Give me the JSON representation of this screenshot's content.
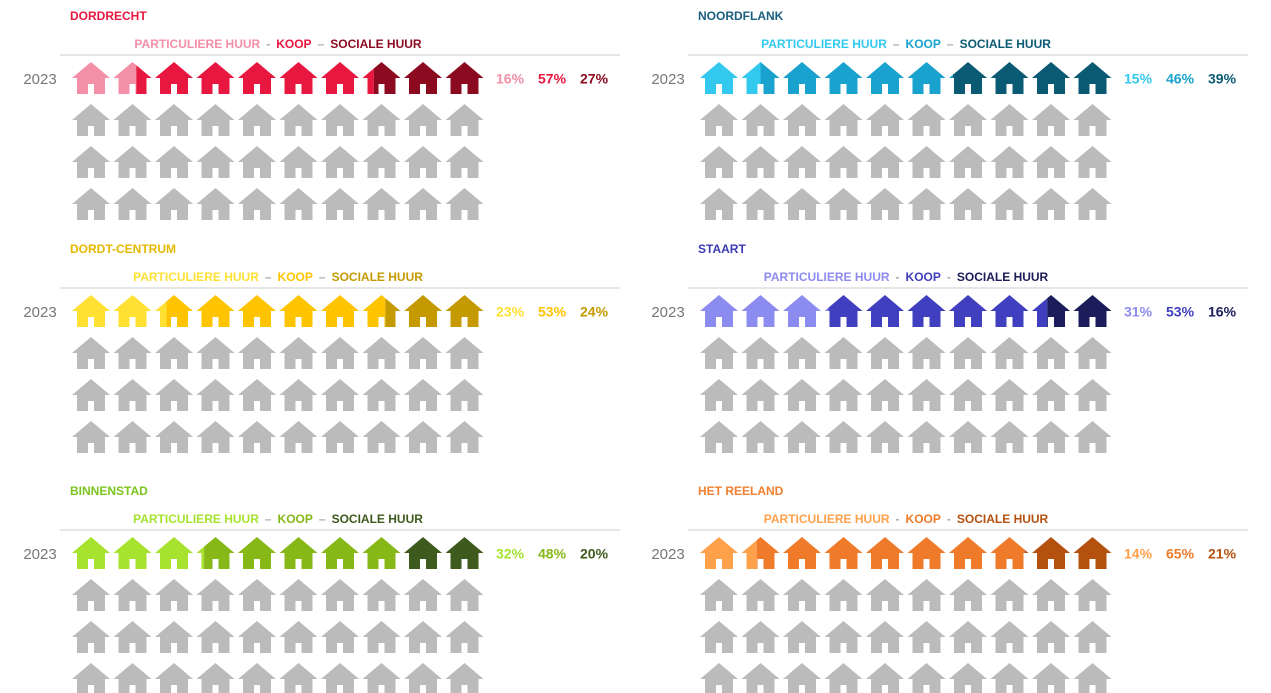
{
  "chart_data": [
    {
      "type": "pictogram",
      "title": "DORDRECHT",
      "title_color": "#e8173f",
      "categories": [
        "2023"
      ],
      "separators": [
        "-",
        "–"
      ],
      "series": [
        {
          "name": "PARTICULIERE HUUR",
          "color": "#f48fa8",
          "values": [
            16
          ],
          "value_labels": [
            "16%"
          ]
        },
        {
          "name": "KOOP",
          "color": "#e8173f",
          "values": [
            57
          ],
          "value_labels": [
            "57%"
          ]
        },
        {
          "name": "SOCIALE HUUR",
          "color": "#8b0a1f",
          "values": [
            27
          ],
          "value_labels": [
            "27%"
          ]
        }
      ]
    },
    {
      "type": "pictogram",
      "title": "NOORDFLANK",
      "title_color": "#1a6080",
      "categories": [
        "2023"
      ],
      "separators": [
        "–",
        "–"
      ],
      "series": [
        {
          "name": "PARTICULIERE HUUR",
          "color": "#33c9ef",
          "values": [
            15
          ],
          "value_labels": [
            "15%"
          ]
        },
        {
          "name": "KOOP",
          "color": "#1aa2cf",
          "values": [
            46
          ],
          "value_labels": [
            "46%"
          ]
        },
        {
          "name": "SOCIALE HUUR",
          "color": "#0b5a74",
          "values": [
            39
          ],
          "value_labels": [
            "39%"
          ]
        }
      ]
    },
    {
      "type": "pictogram",
      "title": "DORDT-CENTRUM",
      "title_color": "#e6b800",
      "categories": [
        "2023"
      ],
      "separators": [
        "–",
        "–"
      ],
      "series": [
        {
          "name": "PARTICULIERE HUUR",
          "color": "#ffe033",
          "values": [
            23
          ],
          "value_labels": [
            "23%"
          ]
        },
        {
          "name": "KOOP",
          "color": "#ffc400",
          "values": [
            53
          ],
          "value_labels": [
            "53%"
          ]
        },
        {
          "name": "SOCIALE HUUR",
          "color": "#c49a00",
          "values": [
            24
          ],
          "value_labels": [
            "24%"
          ]
        }
      ]
    },
    {
      "type": "pictogram",
      "title": "STAART",
      "title_color": "#3b3bb5",
      "categories": [
        "2023"
      ],
      "separators": [
        "-",
        "-"
      ],
      "series": [
        {
          "name": "PARTICULIERE HUUR",
          "color": "#8c8cf0",
          "values": [
            31
          ],
          "value_labels": [
            "31%"
          ]
        },
        {
          "name": "KOOP",
          "color": "#3f3fc0",
          "values": [
            53
          ],
          "value_labels": [
            "53%"
          ]
        },
        {
          "name": "SOCIALE HUUR",
          "color": "#1c1c5a",
          "values": [
            16
          ],
          "value_labels": [
            "16%"
          ]
        }
      ]
    },
    {
      "type": "pictogram",
      "title": "BINNENSTAD",
      "title_color": "#7ac51e",
      "categories": [
        "2023"
      ],
      "separators": [
        "–",
        "–"
      ],
      "series": [
        {
          "name": "PARTICULIERE HUUR",
          "color": "#a6e22e",
          "values": [
            32
          ],
          "value_labels": [
            "32%"
          ]
        },
        {
          "name": "KOOP",
          "color": "#86b818",
          "values": [
            48
          ],
          "value_labels": [
            "48%"
          ]
        },
        {
          "name": "SOCIALE HUUR",
          "color": "#3e5a1c",
          "values": [
            20
          ],
          "value_labels": [
            "20%"
          ]
        }
      ]
    },
    {
      "type": "pictogram",
      "title": "HET REELAND",
      "title_color": "#f08030",
      "categories": [
        "2023"
      ],
      "separators": [
        "-",
        "-"
      ],
      "series": [
        {
          "name": "PARTICULIERE HUUR",
          "color": "#ffa04a",
          "values": [
            14
          ],
          "value_labels": [
            "14%"
          ]
        },
        {
          "name": "KOOP",
          "color": "#ef7a2a",
          "values": [
            65
          ],
          "value_labels": [
            "65%"
          ]
        },
        {
          "name": "SOCIALE HUUR",
          "color": "#b4510f",
          "values": [
            21
          ],
          "value_labels": [
            "21%"
          ]
        }
      ]
    }
  ]
}
